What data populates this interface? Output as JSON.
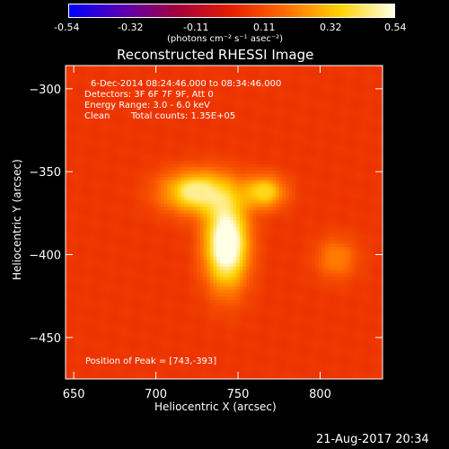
{
  "colorbar": {
    "ticks": [
      "-0.54",
      "-0.32",
      "-0.11",
      "0.11",
      "0.32",
      "0.54"
    ],
    "unit_label": "(photons cm⁻² s⁻¹ asec⁻²)",
    "gradient": [
      "#0000ff",
      "#5a00b4",
      "#a3003c",
      "#e61e00",
      "#ff6e00",
      "#ffd200",
      "#ffffe6"
    ]
  },
  "header": {
    "title": "Reconstructed RHESSI Image"
  },
  "annotations": {
    "time_range": "6-Dec-2014 08:24:46.000 to 08:34:46.000",
    "detectors": "Detectors: 3F 6F 7F 9F, Att 0",
    "energy": "Energy Range: 3.0 - 6.0 keV",
    "method": "Clean",
    "counts": "Total counts: 1.35E+05",
    "peak": "Position of Peak = [743,-393]"
  },
  "footer": {
    "date": "21-Aug-2017 20:34"
  },
  "chart_data": {
    "type": "heatmap",
    "title": "Reconstructed RHESSI Image",
    "xlabel": "Heliocentric X (arcsec)",
    "ylabel": "Heliocentric Y (arcsec)",
    "xlim": [
      645,
      838
    ],
    "ylim": [
      -475,
      -286
    ],
    "x_ticks": [
      650,
      700,
      750,
      800
    ],
    "y_ticks": [
      -300,
      -350,
      -400,
      -450
    ],
    "colorbar_range": [
      -0.54,
      0.54
    ],
    "peak_position": [
      743,
      -393
    ],
    "sources": [
      {
        "x": 743,
        "y": -393,
        "sx": 9,
        "sy": 18,
        "amp": 0.54
      },
      {
        "x": 725,
        "y": -362,
        "sx": 15,
        "sy": 9,
        "amp": 0.36
      },
      {
        "x": 766,
        "y": -362,
        "sx": 9,
        "sy": 7,
        "amp": 0.28
      },
      {
        "x": 810,
        "y": -402,
        "sx": 9,
        "sy": 9,
        "amp": 0.14
      }
    ],
    "background_level": 0.11
  }
}
